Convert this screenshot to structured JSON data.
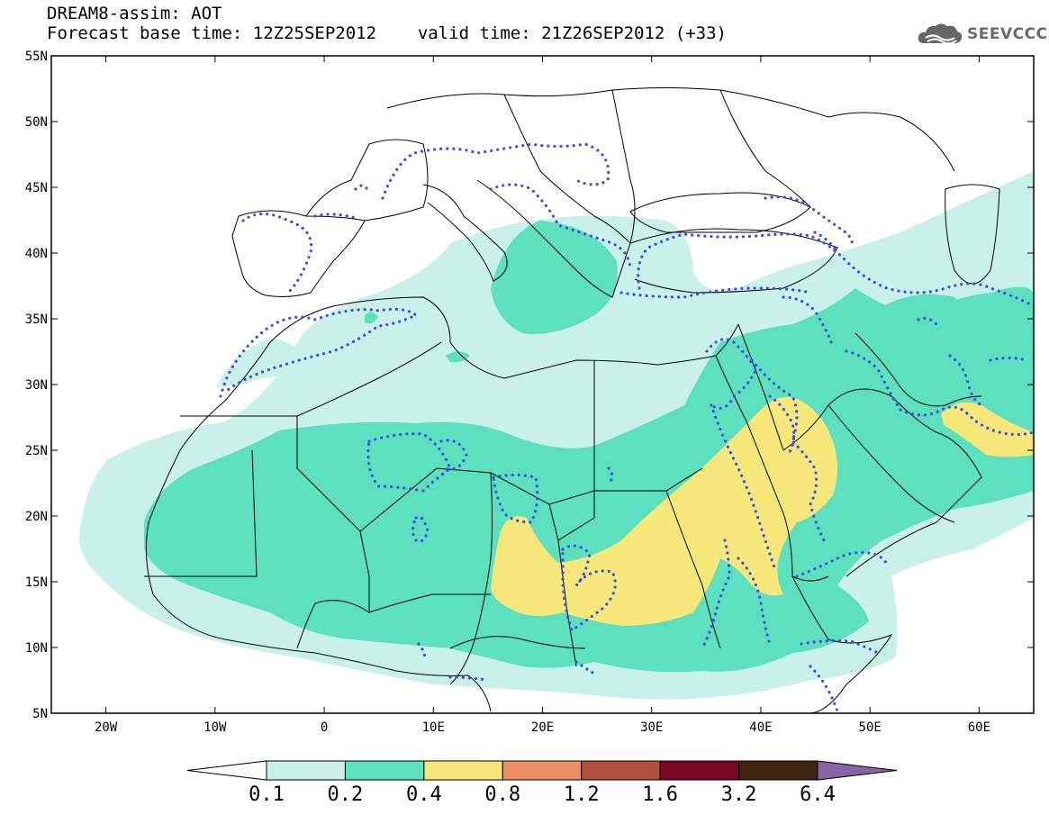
{
  "title": {
    "line1": "DREAM8-assim: AOT",
    "base_time_label": "Forecast base time: 12Z25SEP2012",
    "valid_time_label": "valid time: 21Z26SEP2012 (+33)"
  },
  "logo": {
    "text": "SEEVCCC",
    "icon": "cloud-icon"
  },
  "map": {
    "lon_range": [
      -25,
      65
    ],
    "lat_range": [
      5,
      55
    ],
    "lat_ticks": [
      "5N",
      "10N",
      "15N",
      "20N",
      "25N",
      "30N",
      "35N",
      "40N",
      "45N",
      "50N",
      "55N"
    ],
    "lon_ticks": [
      "20W",
      "10W",
      "0",
      "10E",
      "20E",
      "30E",
      "40E",
      "50E",
      "60E"
    ],
    "contour_style": "dotted-blue",
    "contour_color": "#3a4ee8"
  },
  "colorbar": {
    "labels": [
      "0.1",
      "0.2",
      "0.4",
      "0.8",
      "1.2",
      "1.6",
      "3.2",
      "6.4"
    ],
    "colors": [
      "#ffffff",
      "#c9f1ea",
      "#5de0bd",
      "#f6e77a",
      "#ec9068",
      "#b04e3d",
      "#7a0625",
      "#3d2512",
      "#8a63a6"
    ]
  }
}
